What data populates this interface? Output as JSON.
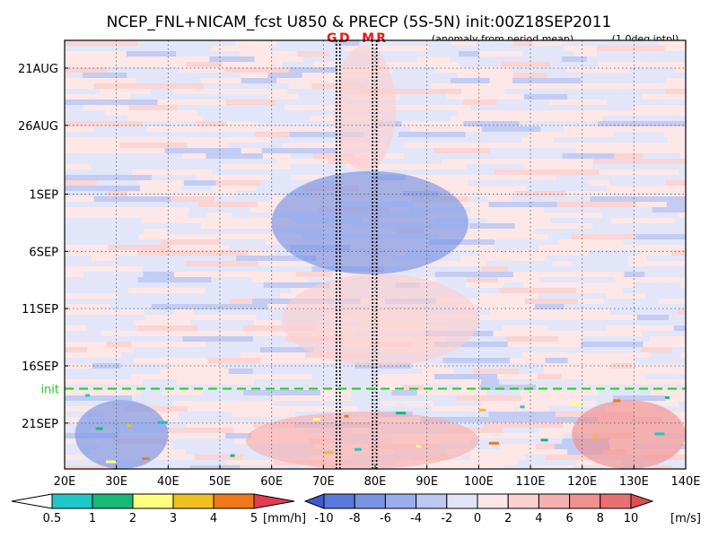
{
  "chart_data": {
    "type": "heatmap",
    "title": "NCEP_FNL+NICAM_fcst U850 & PRECP (5S-5N) init:00Z18SEP2011",
    "subtitle_left": "(anomaly from period mean)",
    "subtitle_right": "(1.0deg intpl)",
    "markers": [
      {
        "label": "G",
        "lon": 72.5,
        "color": "#e8191a"
      },
      {
        "label": "D",
        "lon": 73.2,
        "color": "#e8191a"
      },
      {
        "label": "M",
        "lon": 79.5,
        "color": "#e8191a"
      },
      {
        "label": "R",
        "lon": 80.3,
        "color": "#e8191a"
      }
    ],
    "init_line": {
      "label": "init",
      "date": "18SEP",
      "color": "#22cc22"
    },
    "x_axis": {
      "variable": "longitude",
      "range": [
        20,
        140
      ],
      "tick_values": [
        20,
        30,
        40,
        50,
        60,
        70,
        80,
        90,
        100,
        110,
        120,
        130,
        140
      ],
      "tick_labels": [
        "20E",
        "30E",
        "40E",
        "50E",
        "60E",
        "70E",
        "80E",
        "90E",
        "100E",
        "110E",
        "120E",
        "130E",
        "140E"
      ]
    },
    "y_axis": {
      "variable": "time",
      "orientation": "time increases downward",
      "range": [
        "19AUG",
        "25SEP"
      ],
      "tick_labels": [
        "21AUG",
        "26AUG",
        "1SEP",
        "6SEP",
        "11SEP",
        "16SEP",
        "21SEP"
      ]
    },
    "grid": true,
    "u850_anomaly_pattern": [
      {
        "lon_range": [
          72,
          84
        ],
        "date_range": [
          "19AUG",
          "30AUG"
        ],
        "sign": "positive",
        "magnitude_ms": 3
      },
      {
        "lon_range": [
          60,
          98
        ],
        "date_range": [
          "30AUG",
          "08SEP"
        ],
        "sign": "negative",
        "magnitude_ms": -6
      },
      {
        "lon_range": [
          62,
          100
        ],
        "date_range": [
          "08SEP",
          "16SEP"
        ],
        "sign": "positive",
        "magnitude_ms": 4
      },
      {
        "lon_range": [
          22,
          40
        ],
        "date_range": [
          "19SEP",
          "25SEP"
        ],
        "sign": "negative",
        "magnitude_ms": -6
      },
      {
        "lon_range": [
          55,
          100
        ],
        "date_range": [
          "20SEP",
          "25SEP"
        ],
        "sign": "positive",
        "magnitude_ms": 5
      },
      {
        "lon_range": [
          118,
          140
        ],
        "date_range": [
          "19SEP",
          "25SEP"
        ],
        "sign": "positive",
        "magnitude_ms": 8
      }
    ],
    "colorbar_precip": {
      "unit": "[mm/h]",
      "levels": [
        "0.5",
        "1",
        "2",
        "3",
        "4",
        "5"
      ],
      "colors": [
        "#ffffff",
        "#1ec8c8",
        "#18b878",
        "#ffff80",
        "#f0c020",
        "#f07818",
        "#e63c50"
      ]
    },
    "colorbar_u850": {
      "unit": "[m/s]",
      "levels": [
        "-10",
        "-8",
        "-6",
        "-4",
        "-2",
        "0",
        "2",
        "4",
        "6",
        "8",
        "10"
      ],
      "colors": [
        "#3f5ad0",
        "#5a78dc",
        "#7a94e4",
        "#9aaeec",
        "#bcc8f2",
        "#dfe4f8",
        "#fde6e6",
        "#fbd0d0",
        "#f6b0b0",
        "#f09090",
        "#e87070",
        "#dd5050"
      ]
    }
  }
}
